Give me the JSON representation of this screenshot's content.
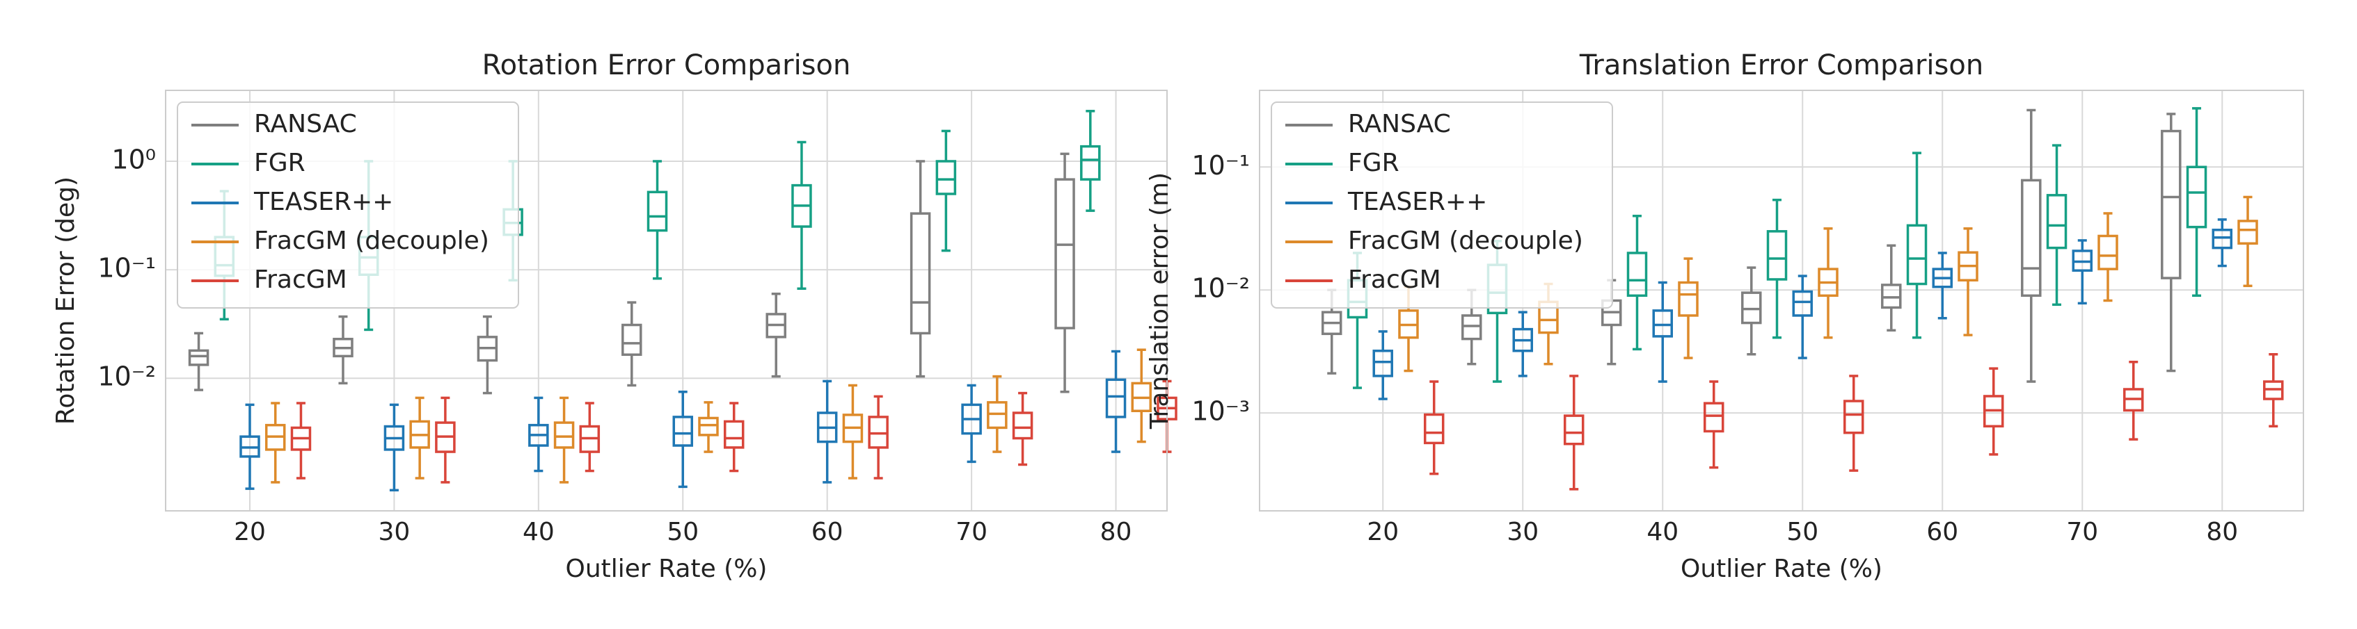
{
  "chart_data": [
    {
      "type": "box",
      "title": "Rotation Error Comparison",
      "xlabel": "Outlier Rate (%)",
      "ylabel": "Rotation Error (deg)",
      "categories": [
        20,
        30,
        40,
        50,
        60,
        70,
        80
      ],
      "log_y": true,
      "grid": true,
      "legend": "upper left",
      "ylim": [
        0.0006,
        4.5
      ],
      "yticks": [
        {
          "value": 0.01,
          "label": "10⁻²"
        },
        {
          "value": 0.1,
          "label": "10⁻¹"
        },
        {
          "value": 1,
          "label": "10⁰"
        }
      ],
      "series": [
        {
          "name": "RANSAC",
          "color": "#7f7f7f",
          "whislo": [
            0.0078,
            0.009,
            0.0073,
            0.0086,
            0.0104,
            0.0104,
            0.0075
          ],
          "q1": [
            0.0133,
            0.016,
            0.0146,
            0.0165,
            0.024,
            0.026,
            0.029
          ],
          "med": [
            0.016,
            0.019,
            0.019,
            0.021,
            0.031,
            0.05,
            0.17
          ],
          "q3": [
            0.018,
            0.023,
            0.024,
            0.031,
            0.039,
            0.33,
            0.68
          ],
          "whishi": [
            0.026,
            0.037,
            0.037,
            0.05,
            0.06,
            1.0,
            1.17
          ]
        },
        {
          "name": "FGR",
          "color": "#16a085",
          "whislo": [
            0.035,
            0.028,
            0.08,
            0.083,
            0.067,
            0.15,
            0.35
          ],
          "q1": [
            0.088,
            0.09,
            0.21,
            0.23,
            0.25,
            0.5,
            0.68
          ],
          "med": [
            0.11,
            0.13,
            0.27,
            0.31,
            0.39,
            0.68,
            1.03
          ],
          "q3": [
            0.2,
            0.2,
            0.36,
            0.52,
            0.6,
            1.0,
            1.37
          ],
          "whishi": [
            0.53,
            1.0,
            1.0,
            1.0,
            1.5,
            1.9,
            2.9
          ]
        },
        {
          "name": "TEASER++",
          "color": "#1f77b4",
          "whislo": [
            0.00096,
            0.00093,
            0.0014,
            0.001,
            0.0011,
            0.0017,
            0.0021
          ],
          "q1": [
            0.0019,
            0.0022,
            0.0024,
            0.0024,
            0.0026,
            0.0031,
            0.0044
          ],
          "med": [
            0.0023,
            0.0028,
            0.003,
            0.0031,
            0.0035,
            0.0042,
            0.0068
          ],
          "q3": [
            0.0029,
            0.0036,
            0.0037,
            0.0044,
            0.0048,
            0.0057,
            0.0097
          ],
          "whishi": [
            0.0057,
            0.0057,
            0.0066,
            0.0075,
            0.0094,
            0.0086,
            0.0177
          ]
        },
        {
          "name": "FracGM (decouple)",
          "color": "#dd8a2a",
          "whislo": [
            0.0011,
            0.0012,
            0.0011,
            0.0021,
            0.0012,
            0.0021,
            0.0026
          ],
          "q1": [
            0.0022,
            0.0023,
            0.0023,
            0.003,
            0.0026,
            0.0035,
            0.005
          ],
          "med": [
            0.0029,
            0.003,
            0.0029,
            0.0037,
            0.0035,
            0.0047,
            0.0066
          ],
          "q3": [
            0.0037,
            0.004,
            0.0039,
            0.0043,
            0.0046,
            0.006,
            0.009
          ],
          "whishi": [
            0.0059,
            0.0066,
            0.0066,
            0.006,
            0.0086,
            0.0104,
            0.0183
          ]
        },
        {
          "name": "FracGM",
          "color": "#d9453a",
          "whislo": [
            0.0012,
            0.0011,
            0.0014,
            0.0014,
            0.0012,
            0.0016,
            0.0021
          ],
          "q1": [
            0.0022,
            0.0021,
            0.0021,
            0.0023,
            0.0023,
            0.0028,
            0.0042
          ],
          "med": [
            0.0028,
            0.0029,
            0.0028,
            0.0028,
            0.0031,
            0.0035,
            0.0053
          ],
          "q3": [
            0.0035,
            0.0039,
            0.0036,
            0.004,
            0.0044,
            0.0048,
            0.0066
          ],
          "whishi": [
            0.0059,
            0.0066,
            0.0059,
            0.0059,
            0.0068,
            0.0073,
            0.0094
          ]
        }
      ]
    },
    {
      "type": "box",
      "title": "Translation Error Comparison",
      "xlabel": "Outlier Rate (%)",
      "ylabel": "Translation error (m)",
      "categories": [
        20,
        30,
        40,
        50,
        60,
        70,
        80
      ],
      "log_y": true,
      "grid": true,
      "legend": "upper left",
      "ylim": [
        0.00016,
        0.42
      ],
      "yticks": [
        {
          "value": 0.001,
          "label": "10⁻³"
        },
        {
          "value": 0.01,
          "label": "10⁻²"
        },
        {
          "value": 0.1,
          "label": "10⁻¹"
        }
      ],
      "series": [
        {
          "name": "RANSAC",
          "color": "#7f7f7f",
          "whislo": [
            0.0021,
            0.0025,
            0.0025,
            0.003,
            0.0047,
            0.0018,
            0.0022
          ],
          "q1": [
            0.0044,
            0.004,
            0.0052,
            0.0054,
            0.0072,
            0.009,
            0.0125
          ],
          "med": [
            0.0054,
            0.0051,
            0.0066,
            0.007,
            0.0087,
            0.015,
            0.057
          ],
          "q3": [
            0.0066,
            0.0062,
            0.0082,
            0.0095,
            0.011,
            0.078,
            0.196
          ],
          "whishi": [
            0.01,
            0.01,
            0.012,
            0.0152,
            0.023,
            0.29,
            0.27
          ]
        },
        {
          "name": "FGR",
          "color": "#16a085",
          "whislo": [
            0.0016,
            0.0018,
            0.0033,
            0.0041,
            0.0041,
            0.0076,
            0.009
          ],
          "q1": [
            0.006,
            0.0065,
            0.009,
            0.0122,
            0.0112,
            0.022,
            0.0325
          ],
          "med": [
            0.008,
            0.0095,
            0.012,
            0.018,
            0.018,
            0.0335,
            0.062
          ],
          "q3": [
            0.012,
            0.016,
            0.02,
            0.03,
            0.0335,
            0.059,
            0.1
          ],
          "whishi": [
            0.02,
            0.025,
            0.04,
            0.054,
            0.13,
            0.15,
            0.3
          ]
        },
        {
          "name": "TEASER++",
          "color": "#1f77b4",
          "whislo": [
            0.0013,
            0.002,
            0.0018,
            0.0028,
            0.0059,
            0.0078,
            0.0157
          ],
          "q1": [
            0.002,
            0.0032,
            0.0042,
            0.0062,
            0.0106,
            0.0144,
            0.022
          ],
          "med": [
            0.0026,
            0.0039,
            0.0052,
            0.008,
            0.0125,
            0.017,
            0.0267
          ],
          "q3": [
            0.0032,
            0.0048,
            0.0068,
            0.0097,
            0.0148,
            0.0208,
            0.0308
          ],
          "whishi": [
            0.0046,
            0.0066,
            0.0115,
            0.013,
            0.02,
            0.0253,
            0.0374
          ]
        },
        {
          "name": "FracGM (decouple)",
          "color": "#dd8a2a",
          "whislo": [
            0.0022,
            0.0025,
            0.0028,
            0.0041,
            0.0043,
            0.0082,
            0.0108
          ],
          "q1": [
            0.0041,
            0.0045,
            0.0062,
            0.009,
            0.012,
            0.0148,
            0.0239
          ],
          "med": [
            0.0052,
            0.0057,
            0.0092,
            0.0115,
            0.0157,
            0.019,
            0.0308
          ],
          "q3": [
            0.0068,
            0.008,
            0.0115,
            0.0148,
            0.0202,
            0.0275,
            0.0364
          ],
          "whishi": [
            0.0106,
            0.0112,
            0.018,
            0.0316,
            0.0316,
            0.042,
            0.057
          ]
        },
        {
          "name": "FracGM",
          "color": "#d9453a",
          "whislo": [
            0.00032,
            0.00024,
            0.00036,
            0.00034,
            0.00046,
            0.00061,
            0.00078
          ],
          "q1": [
            0.00057,
            0.00056,
            0.00071,
            0.00069,
            0.00078,
            0.00105,
            0.0013
          ],
          "med": [
            0.00069,
            0.00069,
            0.00095,
            0.00097,
            0.00105,
            0.0013,
            0.00156
          ],
          "q3": [
            0.00097,
            0.00095,
            0.0012,
            0.00125,
            0.00137,
            0.00156,
            0.0018
          ],
          "whishi": [
            0.0018,
            0.002,
            0.0018,
            0.002,
            0.0023,
            0.0026,
            0.003
          ]
        }
      ]
    }
  ]
}
